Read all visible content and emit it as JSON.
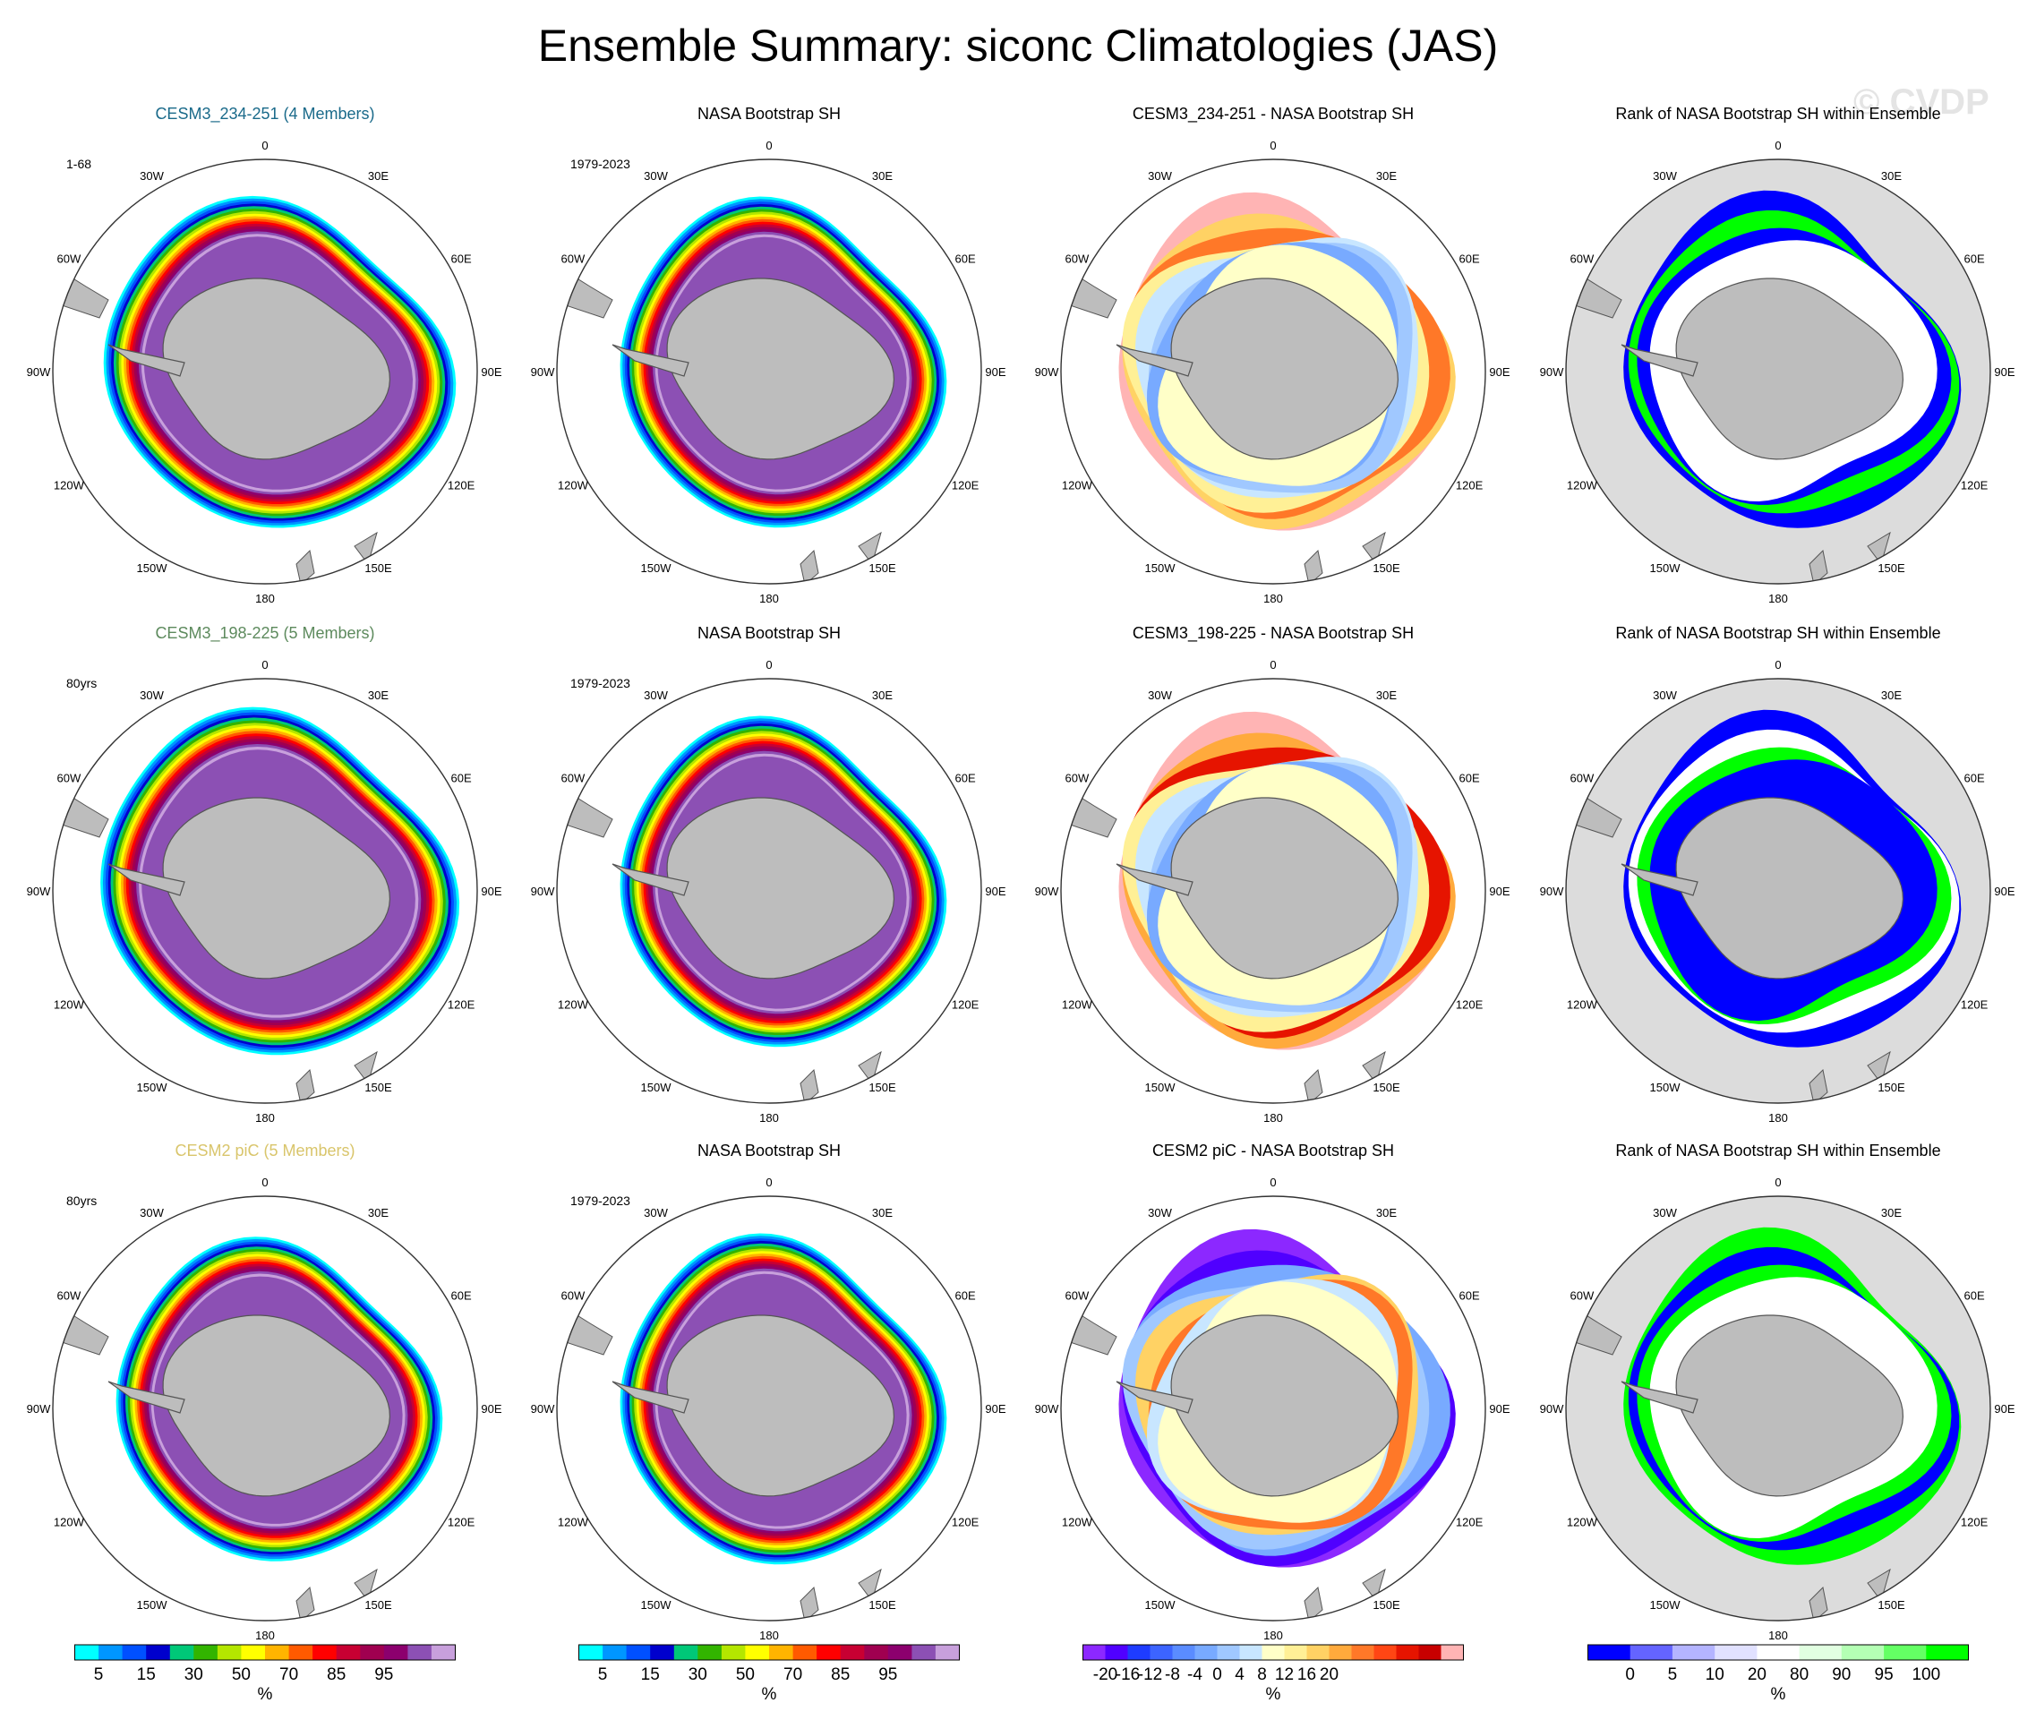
{
  "title": "Ensemble Summary: siconc Climatologies (JAS)",
  "watermark": "© CVDP",
  "map_labels": {
    "lon": [
      "0",
      "30E",
      "60E",
      "90E",
      "120E",
      "150E",
      "180",
      "150W",
      "120W",
      "90W",
      "60W",
      "30W"
    ]
  },
  "rows": [
    {
      "panels": [
        {
          "title": "CESM3_234-251 (4 Members)",
          "title_color": "#1a6a8a",
          "left_note": "1-68",
          "type": "sic",
          "style": "model_a"
        },
        {
          "title": "NASA Bootstrap SH",
          "title_color": "#000000",
          "left_note": "1979-2023",
          "type": "sic",
          "style": "obs"
        },
        {
          "title": "CESM3_234-251 - NASA Bootstrap SH",
          "title_color": "#000000",
          "left_note": "",
          "type": "diff",
          "style": "diff_a"
        },
        {
          "title": "Rank of NASA Bootstrap SH within Ensemble",
          "title_color": "#000000",
          "left_note": "",
          "type": "rank",
          "style": "rank_a"
        }
      ]
    },
    {
      "panels": [
        {
          "title": "CESM3_198-225 (5 Members)",
          "title_color": "#5d8a5d",
          "left_note": "80yrs",
          "type": "sic",
          "style": "model_b"
        },
        {
          "title": "NASA Bootstrap SH",
          "title_color": "#000000",
          "left_note": "1979-2023",
          "type": "sic",
          "style": "obs"
        },
        {
          "title": "CESM3_198-225 - NASA Bootstrap SH",
          "title_color": "#000000",
          "left_note": "",
          "type": "diff",
          "style": "diff_b"
        },
        {
          "title": "Rank of NASA Bootstrap SH within Ensemble",
          "title_color": "#000000",
          "left_note": "",
          "type": "rank",
          "style": "rank_b"
        }
      ]
    },
    {
      "panels": [
        {
          "title": "CESM2 piC (5 Members)",
          "title_color": "#d9c56b",
          "left_note": "80yrs",
          "type": "sic",
          "style": "model_c"
        },
        {
          "title": "NASA Bootstrap SH",
          "title_color": "#000000",
          "left_note": "1979-2023",
          "type": "sic",
          "style": "obs"
        },
        {
          "title": "CESM2 piC - NASA Bootstrap SH",
          "title_color": "#000000",
          "left_note": "",
          "type": "diff",
          "style": "diff_c"
        },
        {
          "title": "Rank of NASA Bootstrap SH within Ensemble",
          "title_color": "#000000",
          "left_note": "",
          "type": "rank",
          "style": "rank_c"
        }
      ]
    }
  ],
  "colorbars": [
    {
      "unit": "%",
      "colors": [
        "#00ffff",
        "#0096ff",
        "#0050ff",
        "#0000cd",
        "#00c878",
        "#32b400",
        "#b4e600",
        "#ffff00",
        "#ffb400",
        "#ff5a00",
        "#ff0000",
        "#c80032",
        "#a00050",
        "#8c006e",
        "#8c50b4",
        "#c8a0dc"
      ],
      "labels": [
        {
          "i": 1,
          "t": "5"
        },
        {
          "i": 3,
          "t": "15"
        },
        {
          "i": 5,
          "t": "30"
        },
        {
          "i": 7,
          "t": "50"
        },
        {
          "i": 9,
          "t": "70"
        },
        {
          "i": 11,
          "t": "85"
        },
        {
          "i": 13,
          "t": "95"
        }
      ]
    },
    {
      "unit": "%",
      "colors": [
        "#00ffff",
        "#0096ff",
        "#0050ff",
        "#0000cd",
        "#00c878",
        "#32b400",
        "#b4e600",
        "#ffff00",
        "#ffb400",
        "#ff5a00",
        "#ff0000",
        "#c80032",
        "#a00050",
        "#8c006e",
        "#8c50b4",
        "#c8a0dc"
      ],
      "labels": [
        {
          "i": 1,
          "t": "5"
        },
        {
          "i": 3,
          "t": "15"
        },
        {
          "i": 5,
          "t": "30"
        },
        {
          "i": 7,
          "t": "50"
        },
        {
          "i": 9,
          "t": "70"
        },
        {
          "i": 11,
          "t": "85"
        },
        {
          "i": 13,
          "t": "95"
        }
      ]
    },
    {
      "unit": "%",
      "colors": [
        "#8c28ff",
        "#5000ff",
        "#1e3cff",
        "#3c64ff",
        "#5a8cff",
        "#78aaff",
        "#a0c8ff",
        "#c8e6ff",
        "#ffffc8",
        "#fff096",
        "#ffd264",
        "#ffaa3c",
        "#ff7828",
        "#ff4614",
        "#e61400",
        "#c80000",
        "#ffb4b4"
      ],
      "labels": [
        {
          "i": 1,
          "t": "-20"
        },
        {
          "i": 2,
          "t": "-16"
        },
        {
          "i": 3,
          "t": "-12"
        },
        {
          "i": 4,
          "t": "-8"
        },
        {
          "i": 5,
          "t": "-4"
        },
        {
          "i": 6,
          "t": "0"
        },
        {
          "i": 7,
          "t": "4"
        },
        {
          "i": 8,
          "t": "8"
        },
        {
          "i": 9,
          "t": "12"
        },
        {
          "i": 10,
          "t": "16"
        },
        {
          "i": 11,
          "t": "20"
        }
      ]
    },
    {
      "unit": "%",
      "colors": [
        "#0000ff",
        "#6464ff",
        "#b4b4ff",
        "#e1e1ff",
        "#ffffff",
        "#e1ffe1",
        "#b4ffb4",
        "#64ff64",
        "#00ff00"
      ],
      "labels": [
        {
          "i": 1,
          "t": "0"
        },
        {
          "i": 2,
          "t": "5"
        },
        {
          "i": 3,
          "t": "10"
        },
        {
          "i": 4,
          "t": "20"
        },
        {
          "i": 5,
          "t": "80"
        },
        {
          "i": 6,
          "t": "90"
        },
        {
          "i": 7,
          "t": "95"
        },
        {
          "i": 8,
          "t": "100"
        }
      ]
    }
  ]
}
